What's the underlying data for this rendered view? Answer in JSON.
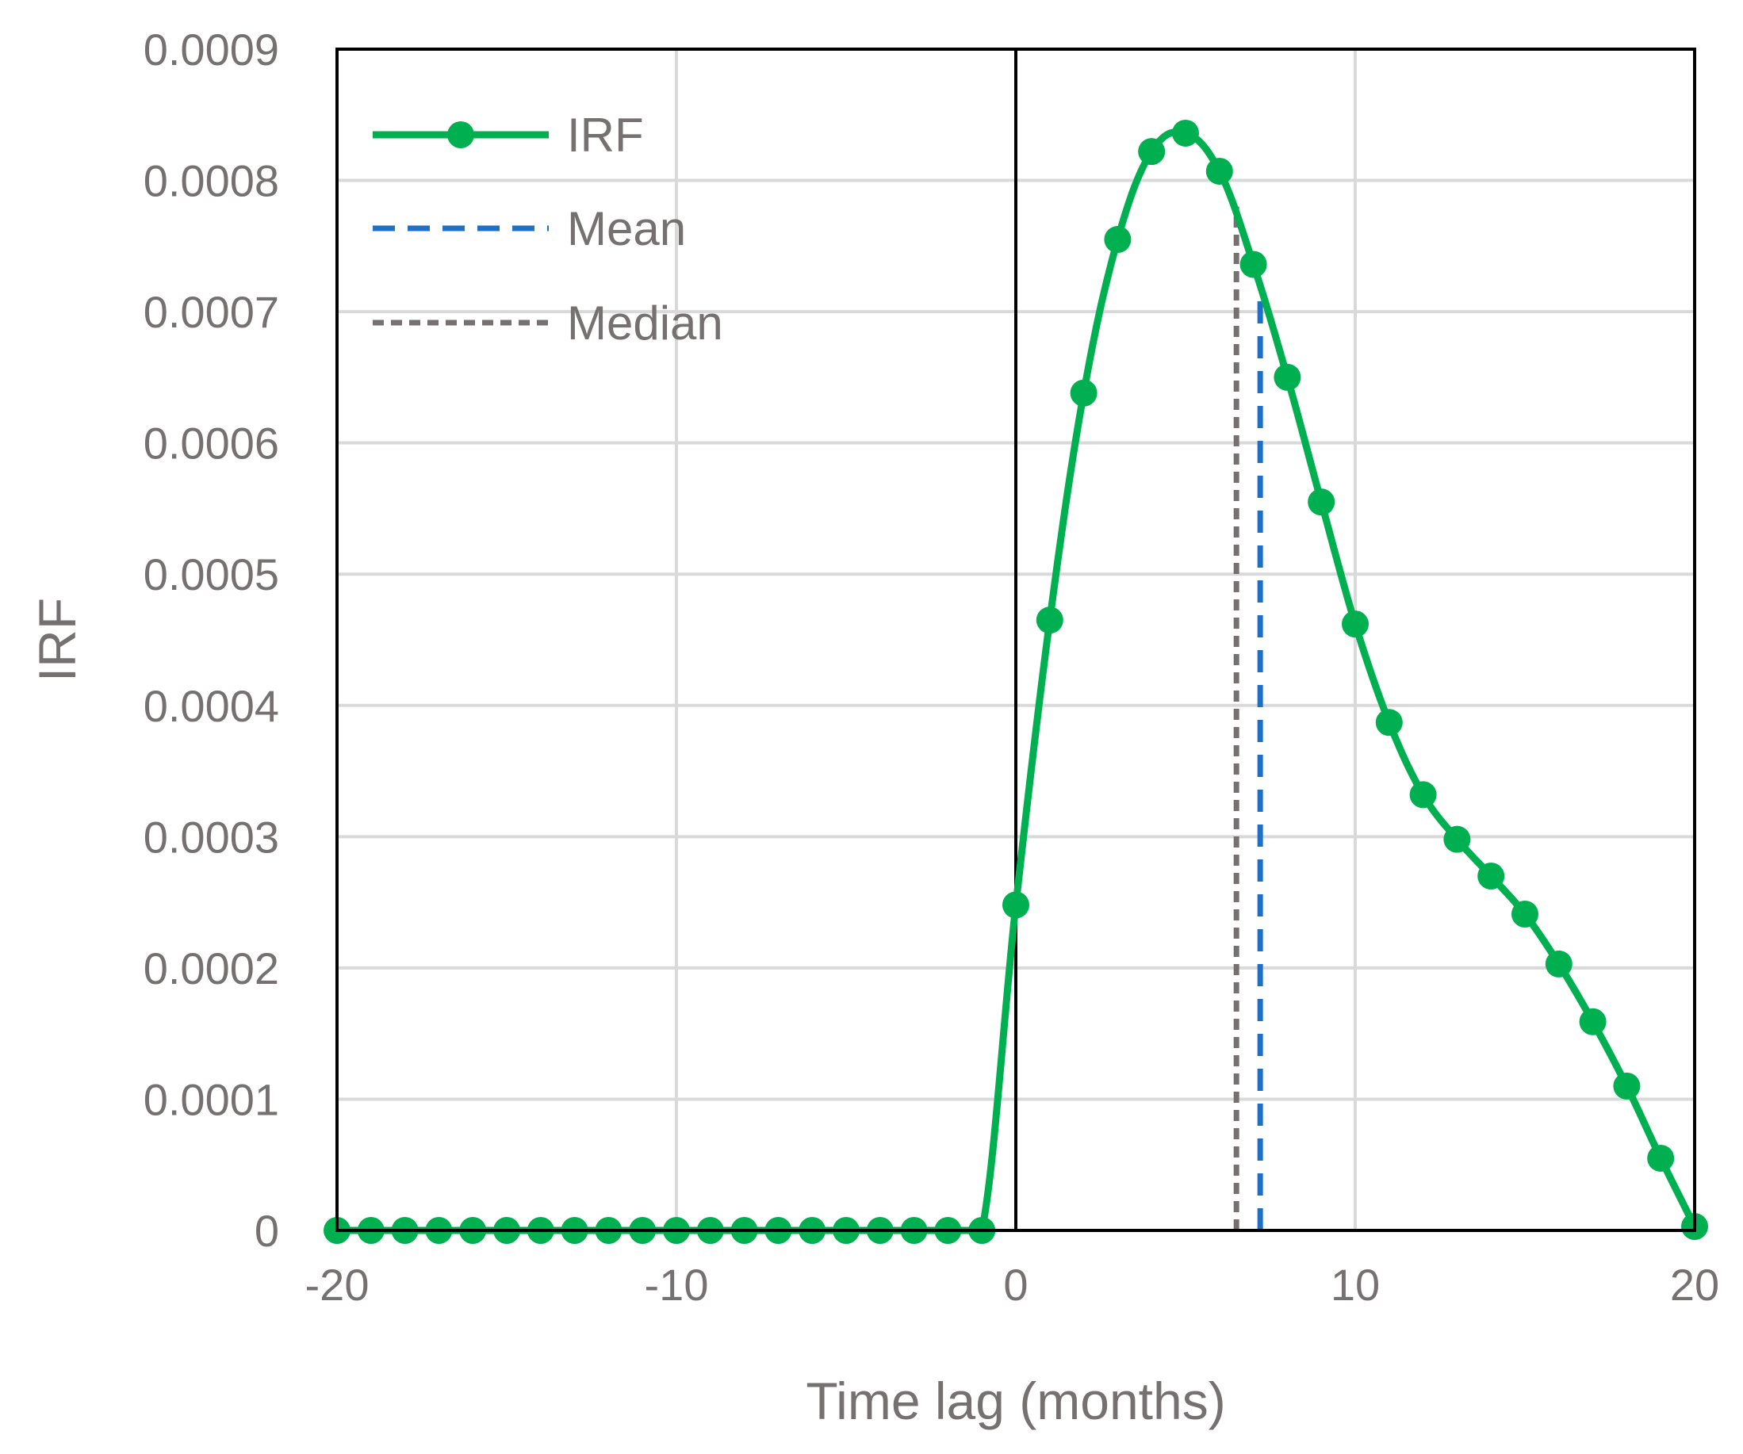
{
  "chart_data": {
    "type": "line",
    "title": "",
    "xlabel": "Time lag (months)",
    "ylabel": "IRF",
    "xlim": [
      -20,
      20
    ],
    "ylim": [
      0,
      0.0009
    ],
    "xticks": [
      -20,
      -10,
      0,
      10,
      20
    ],
    "xtick_labels": [
      "-20",
      "-10",
      "0",
      "10",
      "20"
    ],
    "yticks": [
      0,
      0.0001,
      0.0002,
      0.0003,
      0.0004,
      0.0005,
      0.0006,
      0.0007,
      0.0008,
      0.0009
    ],
    "ytick_labels": [
      "0",
      "0.0001",
      "0.0002",
      "0.0003",
      "0.0004",
      "0.0005",
      "0.0006",
      "0.0007",
      "0.0008",
      "0.0009"
    ],
    "grid": true,
    "legend_position": "top-left",
    "colors": {
      "irf": "#00B050",
      "mean": "#1F6FC5",
      "median": "#767171",
      "frame": "#000000",
      "grid": "#D9D9D9"
    },
    "series": [
      {
        "name": "IRF",
        "style": "solid-markers",
        "x": [
          -20,
          -19,
          -18,
          -17,
          -16,
          -15,
          -14,
          -13,
          -12,
          -11,
          -10,
          -9,
          -8,
          -7,
          -6,
          -5,
          -4,
          -3,
          -2,
          -1,
          0,
          1,
          2,
          3,
          4,
          5,
          6,
          7,
          8,
          9,
          10,
          11,
          12,
          13,
          14,
          15,
          16,
          17,
          18,
          19,
          20
        ],
        "y": [
          0,
          0,
          0,
          0,
          0,
          0,
          0,
          0,
          0,
          0,
          0,
          0,
          0,
          0,
          0,
          0,
          0,
          0,
          0,
          0,
          0.000248,
          0.000465,
          0.000638,
          0.000755,
          0.000822,
          0.000836,
          0.000807,
          0.000736,
          0.00065,
          0.000555,
          0.000462,
          0.000387,
          0.000332,
          0.000298,
          0.00027,
          0.000241,
          0.000203,
          0.000159,
          0.00011,
          5.5e-05,
          3e-06
        ]
      },
      {
        "name": "Mean",
        "style": "dashed",
        "x": [
          7.2,
          7.2
        ],
        "y": [
          0,
          0.00072
        ]
      },
      {
        "name": "Median",
        "style": "short-dashed",
        "x": [
          6.5,
          6.5
        ],
        "y": [
          0,
          0.00078
        ]
      }
    ],
    "zero_line_x": 0
  }
}
